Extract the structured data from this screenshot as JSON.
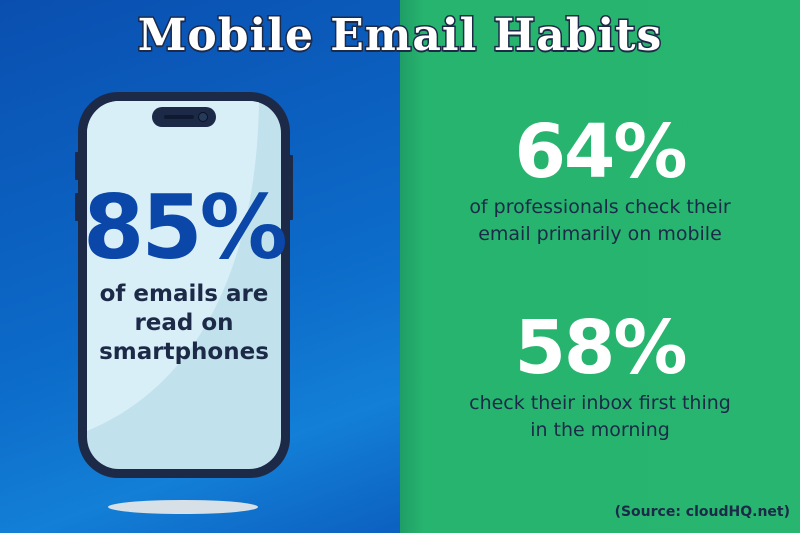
{
  "title": "Mobile Email Habits",
  "colors": {
    "left_bg": "#0c6ac8",
    "right_bg": "#27b56f",
    "phone_frame": "#1c2a48",
    "highlight": "#0a47a8"
  },
  "phone_stat": {
    "value": "85%",
    "lines": [
      "of emails are",
      "read on",
      "smartphones"
    ]
  },
  "stats": [
    {
      "value": "64%",
      "lines": [
        "of professionals check their",
        "email primarily on mobile"
      ]
    },
    {
      "value": "58%",
      "lines": [
        "check their inbox first thing",
        "in the morning"
      ]
    }
  ],
  "source": "(Source: cloudHQ.net)"
}
